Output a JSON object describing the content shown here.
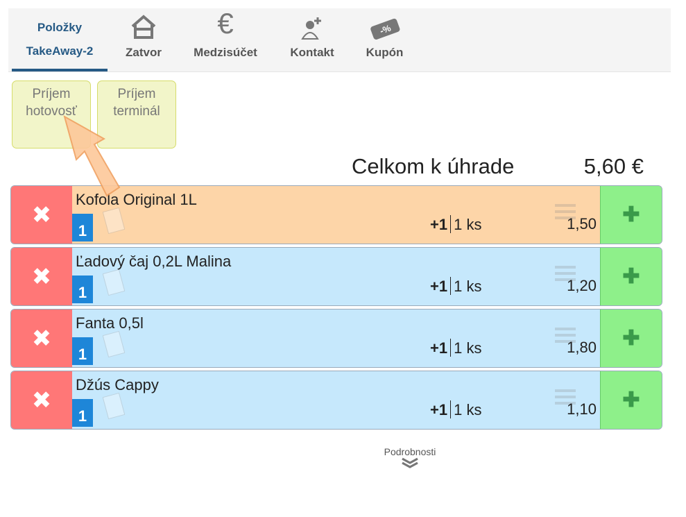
{
  "nav": {
    "tabs": [
      {
        "label1": "Položky",
        "label2": "TakeAway-2",
        "icon": "none",
        "active": true
      },
      {
        "label": "Zatvor",
        "icon": "house-icon"
      },
      {
        "label": "Medzisúčet",
        "icon": "euro-icon"
      },
      {
        "label": "Kontakt",
        "icon": "user-add-icon"
      },
      {
        "label": "Kupón",
        "icon": "coupon-icon",
        "icon_text": "-%"
      }
    ]
  },
  "payments": [
    {
      "label": "Príjem hotovosť"
    },
    {
      "label": "Príjem terminál"
    }
  ],
  "total": {
    "label": "Celkom k úhrade",
    "value": "5,60 €"
  },
  "items": [
    {
      "name": "Kofola Original 1L",
      "badge": "1",
      "inc": "+1",
      "qty": "1 ks",
      "price": "1,50",
      "color": "#fdd5a8"
    },
    {
      "name": "Ľadový čaj 0,2L Malina",
      "badge": "1",
      "inc": "+1",
      "qty": "1 ks",
      "price": "1,20",
      "color": "#c6e8fc"
    },
    {
      "name": "Fanta 0,5l",
      "badge": "1",
      "inc": "+1",
      "qty": "1 ks",
      "price": "1,80",
      "color": "#c6e8fc"
    },
    {
      "name": "Džús Cappy",
      "badge": "1",
      "inc": "+1",
      "qty": "1 ks",
      "price": "1,10",
      "color": "#c6e8fc"
    }
  ],
  "details": {
    "label": "Podrobnosti",
    "icon": "double-chevron-down-icon"
  },
  "colors": {
    "accent": "#265a85",
    "delete": "#ff7777",
    "add": "#8ef08a",
    "badge": "#1e86d8"
  }
}
